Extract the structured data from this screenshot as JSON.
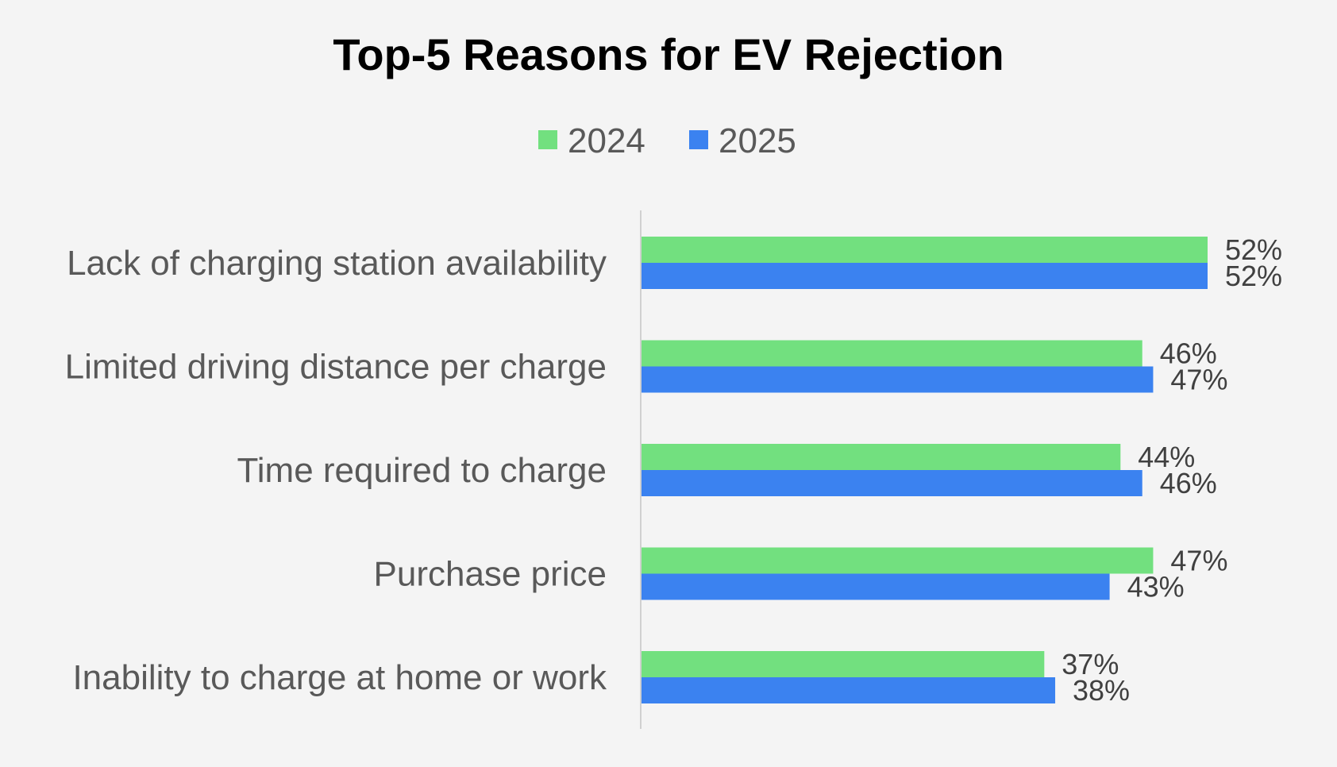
{
  "chart_data": {
    "type": "bar",
    "orientation": "horizontal",
    "title": "Top-5 Reasons for EV Rejection",
    "categories": [
      "Lack of charging station availability",
      "Limited driving distance per charge",
      "Time required to charge",
      "Purchase price",
      "Inability to charge at home or work"
    ],
    "series": [
      {
        "name": "2024",
        "color": "#72e07f",
        "values": [
          52,
          46,
          44,
          47,
          37
        ],
        "labels": [
          "52%",
          "46%",
          "44%",
          "47%",
          "37%"
        ]
      },
      {
        "name": "2025",
        "color": "#3b82f0",
        "values": [
          52,
          47,
          46,
          43,
          38
        ],
        "labels": [
          "52%",
          "47%",
          "46%",
          "43%",
          "38%"
        ]
      }
    ],
    "value_unit": "%",
    "xlim": [
      0,
      60
    ],
    "legend_position": "top",
    "grid": false,
    "x_axis_visible": false
  }
}
